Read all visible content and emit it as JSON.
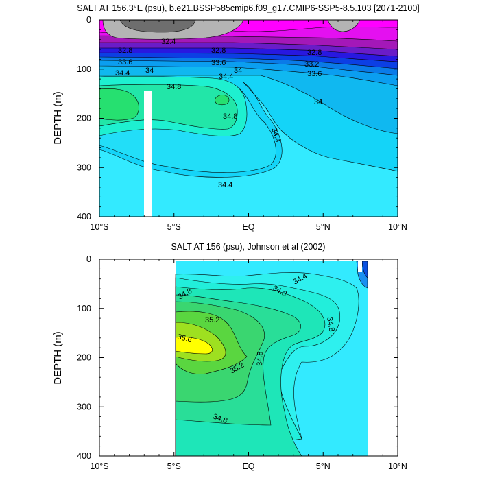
{
  "chart_data": [
    {
      "type": "contour",
      "title": "SALT AT 156.3°E (psu), b.e21.BSSP585cmip6.f09_g17.CMIP6-SSP5-8.5.103 [2071-2100]",
      "ylabel": "DEPTH (m)",
      "xlabel": "",
      "x_ticks": [
        "10°S",
        "5°S",
        "EQ",
        "5°N",
        "10°N"
      ],
      "y_ticks": [
        "0",
        "100",
        "200",
        "300",
        "400"
      ],
      "xlim": [
        -10,
        10
      ],
      "ylim": [
        400,
        0
      ],
      "levels": [
        32.4,
        32.6,
        32.8,
        33.0,
        33.2,
        33.4,
        33.6,
        33.8,
        34.0,
        34.2,
        34.4,
        34.6,
        34.8,
        35.0,
        35.2,
        35.4,
        35.6
      ],
      "contour_labels": [
        {
          "text": "32.4",
          "lat": -5.3,
          "depth": 12
        },
        {
          "text": "32.8",
          "lat": -8.6,
          "depth": 48
        },
        {
          "text": "33.6",
          "lat": -8.6,
          "depth": 80
        },
        {
          "text": "34.4",
          "lat": -8.7,
          "depth": 102
        },
        {
          "text": "34",
          "lat": -6.5,
          "depth": 100
        },
        {
          "text": "34.8",
          "lat": -5.0,
          "depth": 128
        },
        {
          "text": "32.8",
          "lat": -1.9,
          "depth": 48
        },
        {
          "text": "33.6",
          "lat": -1.9,
          "depth": 80
        },
        {
          "text": "34.4",
          "lat": -1.2,
          "depth": 108
        },
        {
          "text": "34",
          "lat": -0.9,
          "depth": 99
        },
        {
          "text": "34.8",
          "lat": -1.3,
          "depth": 190
        },
        {
          "text": "34.4",
          "lat": 2.0,
          "depth": 225
        },
        {
          "text": "34.4",
          "lat": -1.9,
          "depth": 335
        },
        {
          "text": "32.8",
          "lat": 5.4,
          "depth": 64
        },
        {
          "text": "33.2",
          "lat": 5.0,
          "depth": 88
        },
        {
          "text": "33.6",
          "lat": 4.7,
          "depth": 103
        },
        {
          "text": "34",
          "lat": 5.0,
          "depth": 160
        }
      ]
    },
    {
      "type": "contour",
      "title": "SALT AT 156 (psu), Johnson et al (2002)",
      "ylabel": "DEPTH (m)",
      "xlabel": "",
      "x_ticks": [
        "10°S",
        "5°S",
        "EQ",
        "5°N",
        "10°N"
      ],
      "y_ticks": [
        "0",
        "100",
        "200",
        "300",
        "400"
      ],
      "xlim": [
        -10,
        10
      ],
      "ylim": [
        400,
        0
      ],
      "data_extent_lat": [
        -5,
        8
      ],
      "levels": [
        34.0,
        34.2,
        34.4,
        34.6,
        34.8,
        35.0,
        35.2,
        35.4,
        35.6
      ],
      "contour_labels": [
        {
          "text": "34.8",
          "lat": -4.4,
          "depth": 72
        },
        {
          "text": "35.2",
          "lat": -2.6,
          "depth": 118
        },
        {
          "text": "35.6",
          "lat": -4.2,
          "depth": 160
        },
        {
          "text": "35.2",
          "lat": -0.7,
          "depth": 222
        },
        {
          "text": "34.8",
          "lat": 1.1,
          "depth": 58
        },
        {
          "text": "34.4",
          "lat": 3.5,
          "depth": 53
        },
        {
          "text": "34.8",
          "lat": 5.5,
          "depth": 132
        },
        {
          "text": "34.8",
          "lat": 1.0,
          "depth": 255
        },
        {
          "text": "34.8",
          "lat": -1.6,
          "depth": 322
        }
      ]
    }
  ]
}
